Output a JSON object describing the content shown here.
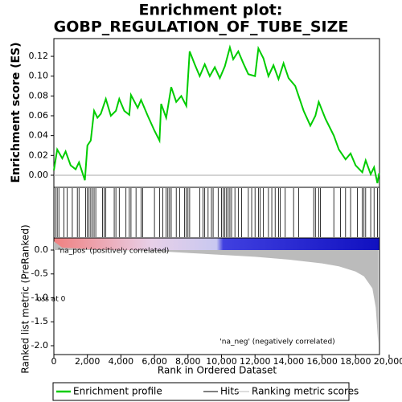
{
  "chart_data": [
    {
      "type": "line",
      "title": "Enrichment plot:",
      "subtitle": "GOBP_REGULATION_OF_TUBE_SIZE",
      "y_label": "Enrichment score (ES)",
      "x": [
        0,
        200,
        500,
        700,
        1000,
        1300,
        1500,
        1850,
        2000,
        2200,
        2400,
        2600,
        2800,
        3100,
        3400,
        3700,
        3900,
        4200,
        4500,
        4600,
        5000,
        5200,
        5600,
        6000,
        6300,
        6400,
        6700,
        7000,
        7300,
        7600,
        7900,
        8100,
        8400,
        8700,
        9000,
        9300,
        9600,
        9900,
        10200,
        10500,
        10700,
        11000,
        11300,
        11600,
        12000,
        12200,
        12500,
        12800,
        13100,
        13400,
        13700,
        14000,
        14400,
        14900,
        15300,
        15600,
        15800,
        16200,
        16700,
        17000,
        17400,
        17700,
        18000,
        18400,
        18600,
        18900,
        19100,
        19300,
        19400
      ],
      "series": [
        {
          "name": "Enrichment profile",
          "color": "#00cc00",
          "values": [
            0.005,
            0.026,
            0.017,
            0.024,
            0.01,
            0.006,
            0.013,
            -0.005,
            0.03,
            0.035,
            0.065,
            0.058,
            0.062,
            0.077,
            0.06,
            0.065,
            0.077,
            0.065,
            0.061,
            0.081,
            0.068,
            0.076,
            0.06,
            0.045,
            0.035,
            0.072,
            0.058,
            0.089,
            0.074,
            0.08,
            0.07,
            0.125,
            0.112,
            0.1,
            0.112,
            0.1,
            0.109,
            0.098,
            0.11,
            0.129,
            0.117,
            0.125,
            0.113,
            0.102,
            0.1,
            0.128,
            0.118,
            0.1,
            0.111,
            0.097,
            0.113,
            0.098,
            0.09,
            0.065,
            0.05,
            0.06,
            0.074,
            0.057,
            0.04,
            0.026,
            0.016,
            0.022,
            0.01,
            0.003,
            0.015,
            0.001,
            0.008,
            -0.008,
            0.002
          ]
        }
      ],
      "hits": {
        "name": "Hits",
        "color": "#000000",
        "x": [
          100,
          200,
          300,
          600,
          800,
          1100,
          1400,
          1500,
          1900,
          2000,
          2100,
          2200,
          2300,
          2400,
          2500,
          2900,
          3000,
          3100,
          3600,
          3700,
          3900,
          4300,
          4500,
          4600,
          4900,
          5200,
          5300,
          6000,
          6300,
          6500,
          6700,
          6800,
          6900,
          7000,
          7300,
          7500,
          7800,
          7900,
          8000,
          8100,
          8700,
          8900,
          9000,
          9200,
          9400,
          9500,
          9800,
          10000,
          10100,
          10200,
          10300,
          10400,
          10500,
          10600,
          10800,
          11000,
          11200,
          11600,
          11800,
          12000,
          12200,
          12300,
          12500,
          12800,
          13000,
          13200,
          13400,
          13500,
          13800,
          14300,
          14600,
          15500,
          15600,
          15800,
          15900,
          16700,
          17100,
          17400,
          17700,
          18100,
          18400,
          18500,
          18600,
          18900,
          19100,
          19300
        ]
      },
      "xlim": [
        0,
        19424
      ],
      "ylim": [
        -0.0122,
        0.1379
      ],
      "yticks": [
        {
          "value": 0,
          "label": "0.00"
        },
        {
          "value": 0.02,
          "label": "0.02"
        },
        {
          "value": 0.04,
          "label": "0.04"
        },
        {
          "value": 0.06,
          "label": "0.06"
        },
        {
          "value": 0.08,
          "label": "0.08"
        },
        {
          "value": 0.1,
          "label": "0.10"
        },
        {
          "value": 0.12,
          "label": "0.12"
        }
      ],
      "grid": true
    },
    {
      "type": "area",
      "y_label": "Ranked list metric (PreRanked)",
      "x_label": "Rank in Ordered Dataset",
      "x": [
        0,
        500,
        2000,
        6000,
        8000,
        10000,
        12000,
        14000,
        16000,
        17000,
        18000,
        18500,
        19000,
        19200,
        19350
      ],
      "series": [
        {
          "name": "Ranking metric scores",
          "color": "#bbbbbb",
          "values": [
            0.18,
            0.05,
            0.02,
            -0.02,
            -0.06,
            -0.1,
            -0.14,
            -0.2,
            -0.28,
            -0.34,
            -0.45,
            -0.55,
            -0.8,
            -1.2,
            -1.95
          ]
        }
      ],
      "xlim": [
        0,
        19424
      ],
      "xticks": [
        {
          "value": 0,
          "label": "0"
        },
        {
          "value": 2000,
          "label": "2,000"
        },
        {
          "value": 4000,
          "label": "4,000"
        },
        {
          "value": 6000,
          "label": "6,000"
        },
        {
          "value": 8000,
          "label": "8,000"
        },
        {
          "value": 10000,
          "label": "10,000"
        },
        {
          "value": 12000,
          "label": "12,000"
        },
        {
          "value": 14000,
          "label": "14,000"
        },
        {
          "value": 16000,
          "label": "16,000"
        },
        {
          "value": 18000,
          "label": "18,000"
        },
        {
          "value": 20000,
          "label": "20,000"
        }
      ],
      "ylim": [
        -2.185,
        0.252
      ],
      "yticks": [
        {
          "value": 0,
          "label": "0.0"
        },
        {
          "value": -0.5,
          "label": "-0.5"
        },
        {
          "value": -1,
          "label": "-1.0"
        },
        {
          "value": -1.5,
          "label": "-1.5"
        },
        {
          "value": -2,
          "label": "-2.0"
        }
      ],
      "annotations": [
        {
          "text": "'na_pos' (positively correlated)",
          "color": "#dd0000"
        },
        {
          "text": "oss at 0",
          "color": "#000000"
        },
        {
          "text": "'na_neg' (negatively correlated)",
          "color": "#2222cc"
        }
      ]
    }
  ]
}
